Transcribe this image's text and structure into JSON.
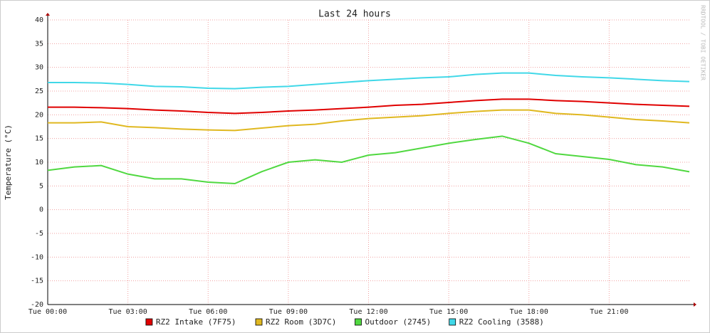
{
  "chart_data": {
    "type": "line",
    "title": "Last 24 hours",
    "y_label": "Temperature (°C)",
    "watermark": "RRDTOOL / TOBI OETIKER",
    "x": [
      0,
      1,
      2,
      3,
      4,
      5,
      6,
      7,
      8,
      9,
      10,
      11,
      12,
      13,
      14,
      15,
      16,
      17,
      18,
      19,
      20,
      21,
      22,
      23,
      24
    ],
    "xlim": [
      0,
      24
    ],
    "xticks": [
      {
        "value": 0,
        "label": "Tue 00:00"
      },
      {
        "value": 3,
        "label": "Tue 03:00"
      },
      {
        "value": 6,
        "label": "Tue 06:00"
      },
      {
        "value": 9,
        "label": "Tue 09:00"
      },
      {
        "value": 12,
        "label": "Tue 12:00"
      },
      {
        "value": 15,
        "label": "Tue 15:00"
      },
      {
        "value": 18,
        "label": "Tue 18:00"
      },
      {
        "value": 21,
        "label": "Tue 21:00"
      }
    ],
    "ylim": [
      -20,
      40
    ],
    "yticks": [
      -20,
      -15,
      -10,
      -5,
      0,
      5,
      10,
      15,
      20,
      25,
      30,
      35,
      40
    ],
    "grid": true,
    "series": [
      {
        "name": "RZ2 Intake (7F75)",
        "color": "#e00000",
        "values": [
          21.6,
          21.6,
          21.5,
          21.3,
          21,
          20.8,
          20.5,
          20.3,
          20.5,
          20.8,
          21,
          21.3,
          21.6,
          22,
          22.2,
          22.6,
          23,
          23.3,
          23.3,
          23,
          22.8,
          22.5,
          22.2,
          22,
          21.8
        ]
      },
      {
        "name": "RZ2 Room (3D7C)",
        "color": "#e0b820",
        "values": [
          18.3,
          18.3,
          18.5,
          17.5,
          17.3,
          17,
          16.8,
          16.7,
          17.2,
          17.7,
          18,
          18.7,
          19.2,
          19.5,
          19.8,
          20.3,
          20.7,
          21,
          21,
          20.3,
          20,
          19.5,
          19,
          18.7,
          18.3
        ]
      },
      {
        "name": "Outdoor (2745)",
        "color": "#50d840",
        "values": [
          8.3,
          9,
          9.3,
          7.5,
          6.5,
          6.5,
          5.8,
          5.5,
          8,
          10,
          10.5,
          10,
          11.5,
          12,
          13,
          14,
          14.8,
          15.5,
          14,
          11.8,
          11.2,
          10.6,
          9.5,
          9,
          8
        ]
      },
      {
        "name": "RZ2 Cooling (3588)",
        "color": "#40d8e8",
        "values": [
          26.8,
          26.8,
          26.7,
          26.4,
          26,
          25.9,
          25.6,
          25.5,
          25.8,
          26,
          26.4,
          26.8,
          27.2,
          27.5,
          27.8,
          28,
          28.5,
          28.8,
          28.8,
          28.3,
          28,
          27.8,
          27.5,
          27.2,
          27
        ]
      }
    ]
  }
}
